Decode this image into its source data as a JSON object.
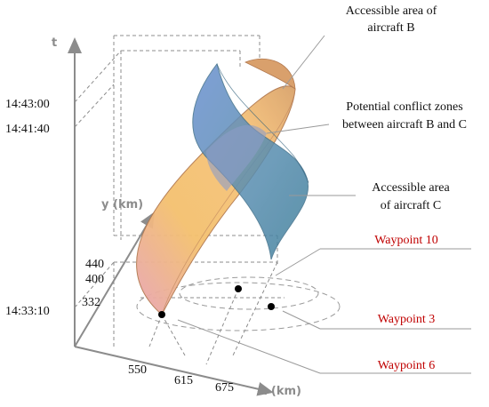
{
  "axes": {
    "t_label": "t",
    "y_label": "y (km)",
    "x_label": "x (km)"
  },
  "time_ticks": [
    "14:43:00",
    "14:41:40",
    "14:33:10"
  ],
  "y_ticks": [
    "440",
    "400",
    "332"
  ],
  "x_ticks": [
    "550",
    "615",
    "675"
  ],
  "annotations": {
    "area_b_line1": "Accessible area of",
    "area_b_line2": "aircraft B",
    "conflict_line1": "Potential conflict zones",
    "conflict_line2": "between aircraft B and C",
    "area_c_line1": "Accessible area",
    "area_c_line2": "of aircraft C"
  },
  "waypoints": [
    "Waypoint 10",
    "Waypoint 3",
    "Waypoint 6"
  ],
  "colors": {
    "aircraft_b": "#f2b968",
    "aircraft_c": "#5a8fb4",
    "overlap": "#8c9cc8",
    "waypoint_text": "#c00000",
    "axis": "#8c8c8c"
  }
}
